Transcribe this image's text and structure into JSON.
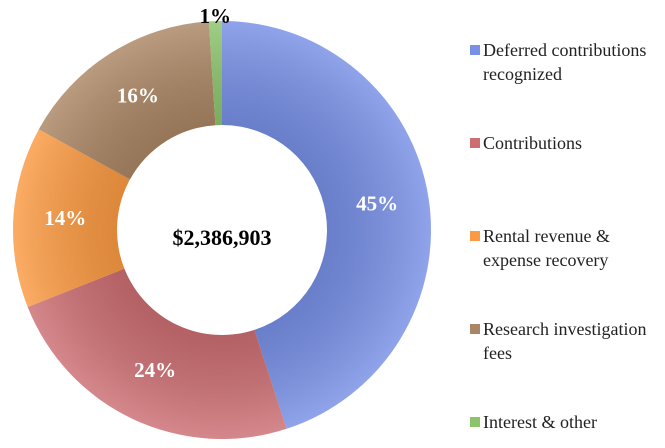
{
  "chart_data": {
    "type": "donut",
    "center_label": "$2,386,903",
    "categories": [
      "Deferred contributions recognized",
      "Contributions",
      "Rental revenue & expense recovery",
      "Research investigation fees",
      "Interest & other"
    ],
    "values": [
      45,
      24,
      14,
      16,
      1
    ],
    "value_labels": [
      "45%",
      "24%",
      "14%",
      "16%",
      "1%"
    ],
    "colors": [
      "#7890e6",
      "#cc6e72",
      "#fb9a42",
      "#ab8664",
      "#8cc46c"
    ],
    "legend": "right"
  }
}
